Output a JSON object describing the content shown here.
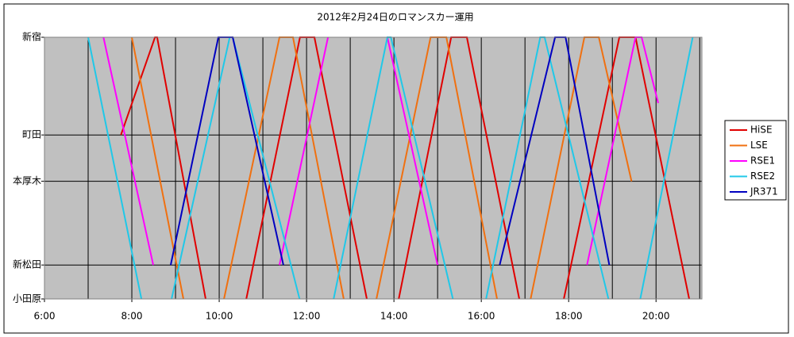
{
  "chart_data": {
    "type": "line",
    "title": "2012年2月24日のロマンスカー運用",
    "xlim": [
      6,
      21.05
    ],
    "xticks": [
      {
        "value": 6,
        "label": "6:00"
      },
      {
        "value": 8,
        "label": "8:00"
      },
      {
        "value": 10,
        "label": "10:00"
      },
      {
        "value": 12,
        "label": "12:00"
      },
      {
        "value": 14,
        "label": "14:00"
      },
      {
        "value": 16,
        "label": "16:00"
      },
      {
        "value": 18,
        "label": "18:00"
      },
      {
        "value": 20,
        "label": "20:00"
      }
    ],
    "xgrid": [
      7,
      8,
      9,
      10,
      11,
      12,
      13,
      14,
      15,
      16,
      17,
      18,
      19,
      20,
      21
    ],
    "ylim": [
      0,
      82.5
    ],
    "y_inverted": true,
    "yticks": [
      {
        "value": 0,
        "label": "新宿"
      },
      {
        "value": 30.8,
        "label": "町田"
      },
      {
        "value": 45.4,
        "label": "本厚木"
      },
      {
        "value": 71.8,
        "label": "新松田"
      },
      {
        "value": 82.5,
        "label": "小田原"
      }
    ],
    "grid": true,
    "legend": "right",
    "series": [
      {
        "name": "HiSE",
        "color": "#e00000",
        "x": [
          7.75,
          8.53,
          8.58,
          9.69,
          null,
          10.62,
          11.85,
          12.18,
          13.38,
          null,
          14.11,
          15.31,
          15.67,
          16.87,
          null,
          17.89,
          19.16,
          19.53,
          20.76
        ],
        "values": [
          30.8,
          0,
          0,
          82.5,
          null,
          82.5,
          0,
          0,
          82.5,
          null,
          82.5,
          0,
          0,
          82.5,
          null,
          82.5,
          0,
          0,
          82.5
        ]
      },
      {
        "name": "LSE",
        "color": "#f07010",
        "x": [
          8.0,
          9.18,
          null,
          10.11,
          11.38,
          11.69,
          12.85,
          null,
          13.6,
          14.84,
          15.2,
          16.36,
          null,
          17.13,
          18.36,
          18.69,
          19.44
        ],
        "values": [
          0,
          82.5,
          null,
          82.5,
          0,
          0,
          82.5,
          null,
          82.5,
          0,
          0,
          82.5,
          null,
          82.5,
          0,
          0,
          45.4
        ]
      },
      {
        "name": "RSE1",
        "color": "#ff00ff",
        "x": [
          7.35,
          8.49,
          null,
          11.38,
          12.49,
          null,
          13.85,
          15.0,
          null,
          18.42,
          19.53,
          19.67,
          20.05
        ],
        "values": [
          0,
          71.8,
          null,
          71.8,
          0,
          null,
          0,
          71.8,
          null,
          71.8,
          0,
          0,
          20.75
        ]
      },
      {
        "name": "RSE2",
        "color": "#20c8e8",
        "x": [
          7.0,
          8.22,
          null,
          8.91,
          10.24,
          10.31,
          11.84,
          null,
          12.62,
          13.85,
          13.93,
          15.35,
          null,
          16.11,
          17.35,
          17.45,
          18.91,
          null,
          19.64,
          20.84
        ],
        "values": [
          0,
          82.5,
          null,
          82.5,
          0,
          0,
          82.5,
          null,
          82.5,
          0,
          0,
          82.5,
          null,
          82.5,
          0,
          0,
          82.5,
          null,
          82.5,
          0
        ]
      },
      {
        "name": "JR371",
        "color": "#0000c0",
        "x": [
          8.89,
          9.98,
          10.31,
          11.47,
          null,
          16.42,
          17.69,
          17.93,
          18.93
        ],
        "values": [
          71.8,
          0,
          0,
          71.8,
          null,
          71.8,
          0,
          0,
          71.8
        ]
      }
    ]
  }
}
